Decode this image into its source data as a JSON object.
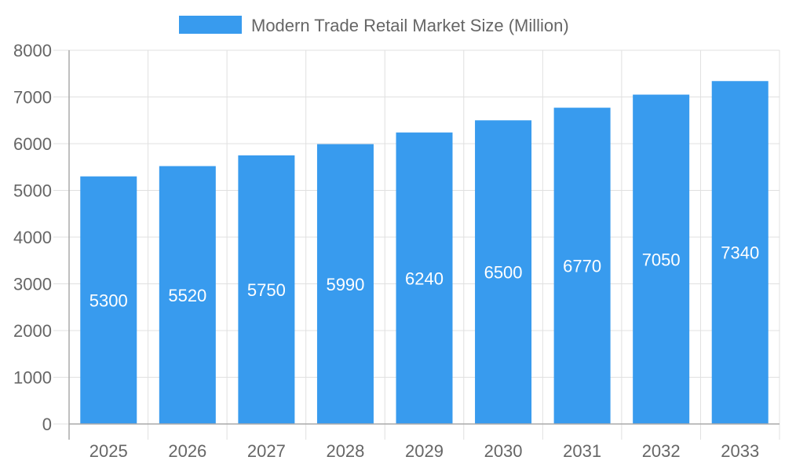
{
  "chart_data": {
    "type": "bar",
    "title": "",
    "xlabel": "",
    "ylabel": "",
    "legend": {
      "position": "top",
      "entries": [
        "Modern Trade Retail Market Size (Million)"
      ]
    },
    "categories": [
      "2025",
      "2026",
      "2027",
      "2028",
      "2029",
      "2030",
      "2031",
      "2032",
      "2033"
    ],
    "series": [
      {
        "name": "Modern Trade Retail Market Size (Million)",
        "values": [
          5300,
          5520,
          5750,
          5990,
          6240,
          6500,
          6770,
          7050,
          7340
        ],
        "color": "#389bee"
      }
    ],
    "ylim": [
      0,
      8000
    ],
    "yticks": [
      0,
      1000,
      2000,
      3000,
      4000,
      5000,
      6000,
      7000,
      8000
    ],
    "grid": true,
    "data_labels": true
  }
}
